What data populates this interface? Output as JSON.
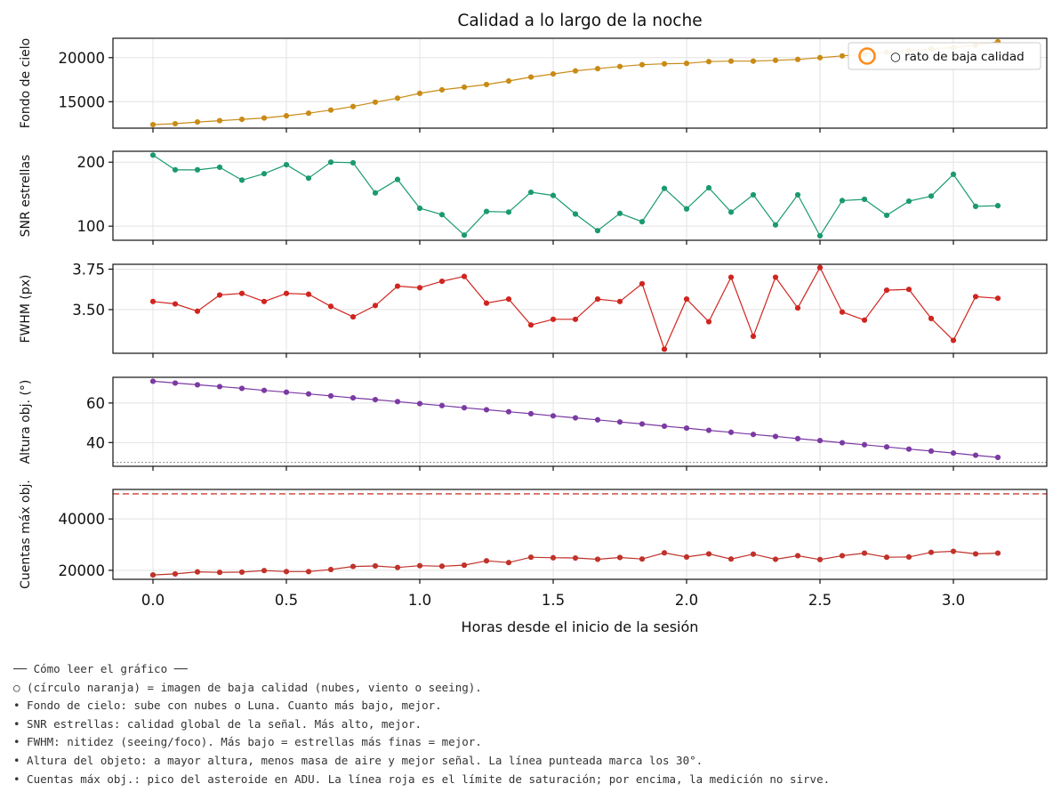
{
  "chart_data": {
    "type": "line",
    "title": "Calidad a lo largo de la noche",
    "xlabel": "Horas desde el inicio de la sesión",
    "xlim": [
      -0.15,
      3.35
    ],
    "x_ticks": [
      0.0,
      0.5,
      1.0,
      1.5,
      2.0,
      2.5,
      3.0
    ],
    "x_tick_labels": [
      "0.0",
      "0.5",
      "1.0",
      "1.5",
      "2.0",
      "2.5",
      "3.0"
    ],
    "x": [
      0.0,
      0.0833,
      0.1667,
      0.25,
      0.3333,
      0.4167,
      0.5,
      0.5833,
      0.6667,
      0.75,
      0.8333,
      0.9167,
      1.0,
      1.0833,
      1.1667,
      1.25,
      1.3333,
      1.4167,
      1.5,
      1.5833,
      1.6667,
      1.75,
      1.8333,
      1.9167,
      2.0,
      2.0833,
      2.1667,
      2.25,
      2.3333,
      2.4167,
      2.5,
      2.5833,
      2.6667,
      2.75,
      2.8333,
      2.9167,
      3.0,
      3.0833,
      3.1667
    ],
    "grid": true,
    "legend": {
      "placement": "top-right",
      "label": "○ rato de baja calidad",
      "marker_color": "#ff8c1a"
    },
    "panels": [
      {
        "ylabel": "Fondo de cielo",
        "ylim": [
          12000,
          22200
        ],
        "y_ticks": [
          15000,
          20000
        ],
        "y_tick_labels": [
          "15000",
          "20000"
        ],
        "color": "#c98b16",
        "values": [
          12400,
          12500,
          12700,
          12850,
          13000,
          13150,
          13400,
          13700,
          14050,
          14450,
          14950,
          15400,
          15950,
          16350,
          16650,
          16950,
          17350,
          17800,
          18150,
          18500,
          18750,
          19000,
          19200,
          19300,
          19350,
          19550,
          19600,
          19600,
          19700,
          19800,
          20000,
          20200,
          20400,
          20600,
          20800,
          21000,
          21150,
          21400,
          21800
        ]
      },
      {
        "ylabel": "SNR estrellas",
        "ylim": [
          78,
          217
        ],
        "y_ticks": [
          100,
          200
        ],
        "y_tick_labels": [
          "100",
          "200"
        ],
        "color": "#1a9a6f",
        "values": [
          211,
          188,
          188,
          192,
          172,
          182,
          196,
          175,
          200,
          199,
          152,
          173,
          128,
          118,
          86,
          123,
          122,
          153,
          148,
          119,
          93,
          120,
          107,
          159,
          127,
          160,
          122,
          149,
          102,
          149,
          85,
          140,
          142,
          117,
          139,
          147,
          181,
          131,
          132
        ]
      },
      {
        "ylabel": "FWHM (px)",
        "ylim": [
          3.23,
          3.78
        ],
        "y_ticks": [
          3.5,
          3.75
        ],
        "y_tick_labels": [
          "3.50",
          "3.75"
        ],
        "color": "#d0251f",
        "values": [
          3.55,
          3.535,
          3.49,
          3.59,
          3.6,
          3.55,
          3.6,
          3.595,
          3.52,
          3.455,
          3.525,
          3.645,
          3.635,
          3.675,
          3.705,
          3.54,
          3.565,
          3.405,
          3.44,
          3.44,
          3.565,
          3.55,
          3.66,
          3.255,
          3.565,
          3.425,
          3.7,
          3.335,
          3.7,
          3.51,
          3.76,
          3.485,
          3.435,
          3.62,
          3.625,
          3.445,
          3.31,
          3.58,
          3.57
        ]
      },
      {
        "ylabel": "Altura obj. (°)",
        "ylim": [
          28,
          73
        ],
        "y_ticks": [
          40,
          60
        ],
        "y_tick_labels": [
          "40",
          "60"
        ],
        "color": "#7b3aa3",
        "reference_line": {
          "value": 30,
          "style": "dotted",
          "color": "#9a9a9a"
        },
        "values": [
          71,
          70.1,
          69.2,
          68.3,
          67.4,
          66.4,
          65.5,
          64.6,
          63.6,
          62.6,
          61.7,
          60.7,
          59.7,
          58.7,
          57.6,
          56.6,
          55.6,
          54.6,
          53.5,
          52.5,
          51.5,
          50.4,
          49.4,
          48.3,
          47.3,
          46.2,
          45.2,
          44.1,
          43.1,
          42.0,
          41.0,
          39.9,
          38.9,
          37.8,
          36.7,
          35.7,
          34.7,
          33.6,
          32.5
        ]
      },
      {
        "ylabel": "Cuentas máx obj.",
        "ylim": [
          16500,
          51500
        ],
        "y_ticks": [
          20000,
          40000
        ],
        "y_tick_labels": [
          "20000",
          "40000"
        ],
        "color": "#c0322a",
        "reference_line": {
          "value": 49800,
          "style": "dashed",
          "color": "#d35a52"
        },
        "values": [
          18200,
          18600,
          19400,
          19200,
          19300,
          19900,
          19500,
          19500,
          20300,
          21500,
          21700,
          21100,
          21800,
          21600,
          22000,
          23700,
          23000,
          25100,
          24900,
          24800,
          24300,
          25000,
          24400,
          26800,
          25200,
          26400,
          24400,
          26300,
          24300,
          25700,
          24200,
          25700,
          26700,
          25100,
          25200,
          27000,
          27400,
          26400,
          26700
        ]
      }
    ]
  },
  "notes": {
    "heading": "── Cómo leer el gráfico ──",
    "lines": [
      "○ (círculo naranja) = imagen de baja calidad (nubes, viento o seeing).",
      "• Fondo de cielo: sube con nubes o Luna. Cuanto más bajo, mejor.",
      "• SNR estrellas: calidad global de la señal. Más alto, mejor.",
      "• FWHM: nitidez (seeing/foco). Más bajo = estrellas más finas = mejor.",
      "• Altura del objeto: a mayor altura, menos masa de aire y mejor señal. La línea punteada marca los 30°.",
      "• Cuentas máx obj.: pico del asteroide en ADU. La línea roja es el límite de saturación; por encima, la medición no sirve."
    ]
  }
}
